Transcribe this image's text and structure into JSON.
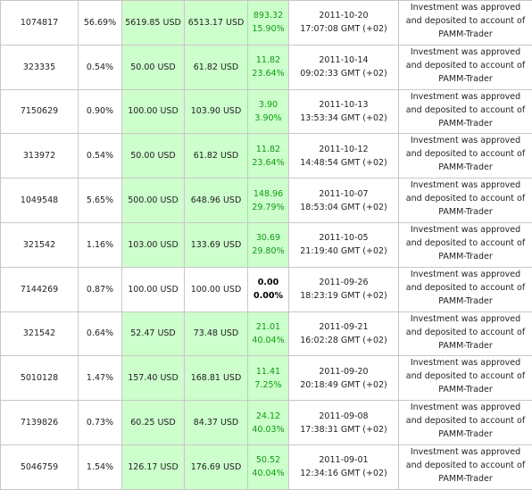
{
  "table": {
    "rows": [
      [
        "1074817",
        "56.69%",
        "5619.85 USD",
        "6513.17 USD",
        "893.32",
        "15.90%",
        "2011-10-20",
        "17:07:08 GMT (+02)",
        "Investment was approved and deposited to account of PAMM-Trader"
      ],
      [
        "323335",
        "0.54%",
        "50.00 USD",
        "61.82 USD",
        "11.82",
        "23.64%",
        "2011-10-14",
        "09:02:33 GMT (+02)",
        "Investment was approved and deposited to account of PAMM-Trader"
      ],
      [
        "7150629",
        "0.90%",
        "100.00 USD",
        "103.90 USD",
        "3.90",
        "3.90%",
        "2011-10-13",
        "13:53:34 GMT (+02)",
        "Investment was approved and deposited to account of PAMM-Trader"
      ],
      [
        "313972",
        "0.54%",
        "50.00 USD",
        "61.82 USD",
        "11.82",
        "23.64%",
        "2011-10-12",
        "14:48:54 GMT (+02)",
        "Investment was approved and deposited to account of PAMM-Trader"
      ],
      [
        "1049548",
        "5.65%",
        "500.00 USD",
        "648.96 USD",
        "148.96",
        "29.79%",
        "2011-10-07",
        "18:53:04 GMT (+02)",
        "Investment was approved and deposited to account of PAMM-Trader"
      ],
      [
        "321542",
        "1.16%",
        "103.00 USD",
        "133.69 USD",
        "30.69",
        "29.80%",
        "2011-10-05",
        "21:19:40 GMT (+02)",
        "Investment was approved and deposited to account of PAMM-Trader"
      ],
      [
        "7144269",
        "0.87%",
        "100.00 USD",
        "100.00 USD",
        "0.00",
        "0.00%",
        "2011-09-26",
        "18:23:19 GMT (+02)",
        "Investment was approved and deposited to account of PAMM-Trader"
      ],
      [
        "321542",
        "0.64%",
        "52.47 USD",
        "73.48 USD",
        "21.01",
        "40.04%",
        "2011-09-21",
        "16:02:28 GMT (+02)",
        "Investment was approved and deposited to account of PAMM-Trader"
      ],
      [
        "5010128",
        "1.47%",
        "157.40 USD",
        "168.81 USD",
        "11.41",
        "7.25%",
        "2011-09-20",
        "20:18:49 GMT (+02)",
        "Investment was approved and deposited to account of PAMM-Trader"
      ],
      [
        "7139826",
        "0.73%",
        "60.25 USD",
        "84.37 USD",
        "24.12",
        "40.03%",
        "2011-09-08",
        "17:38:31 GMT (+02)",
        "Investment was approved and deposited to account of PAMM-Trader"
      ],
      [
        "5046759",
        "1.54%",
        "126.17 USD",
        "176.69 USD",
        "50.52",
        "40.04%",
        "2011-09-01",
        "12:34:16 GMT (+02)",
        "Investment was approved and deposited to account of PAMM-Trader"
      ]
    ]
  }
}
